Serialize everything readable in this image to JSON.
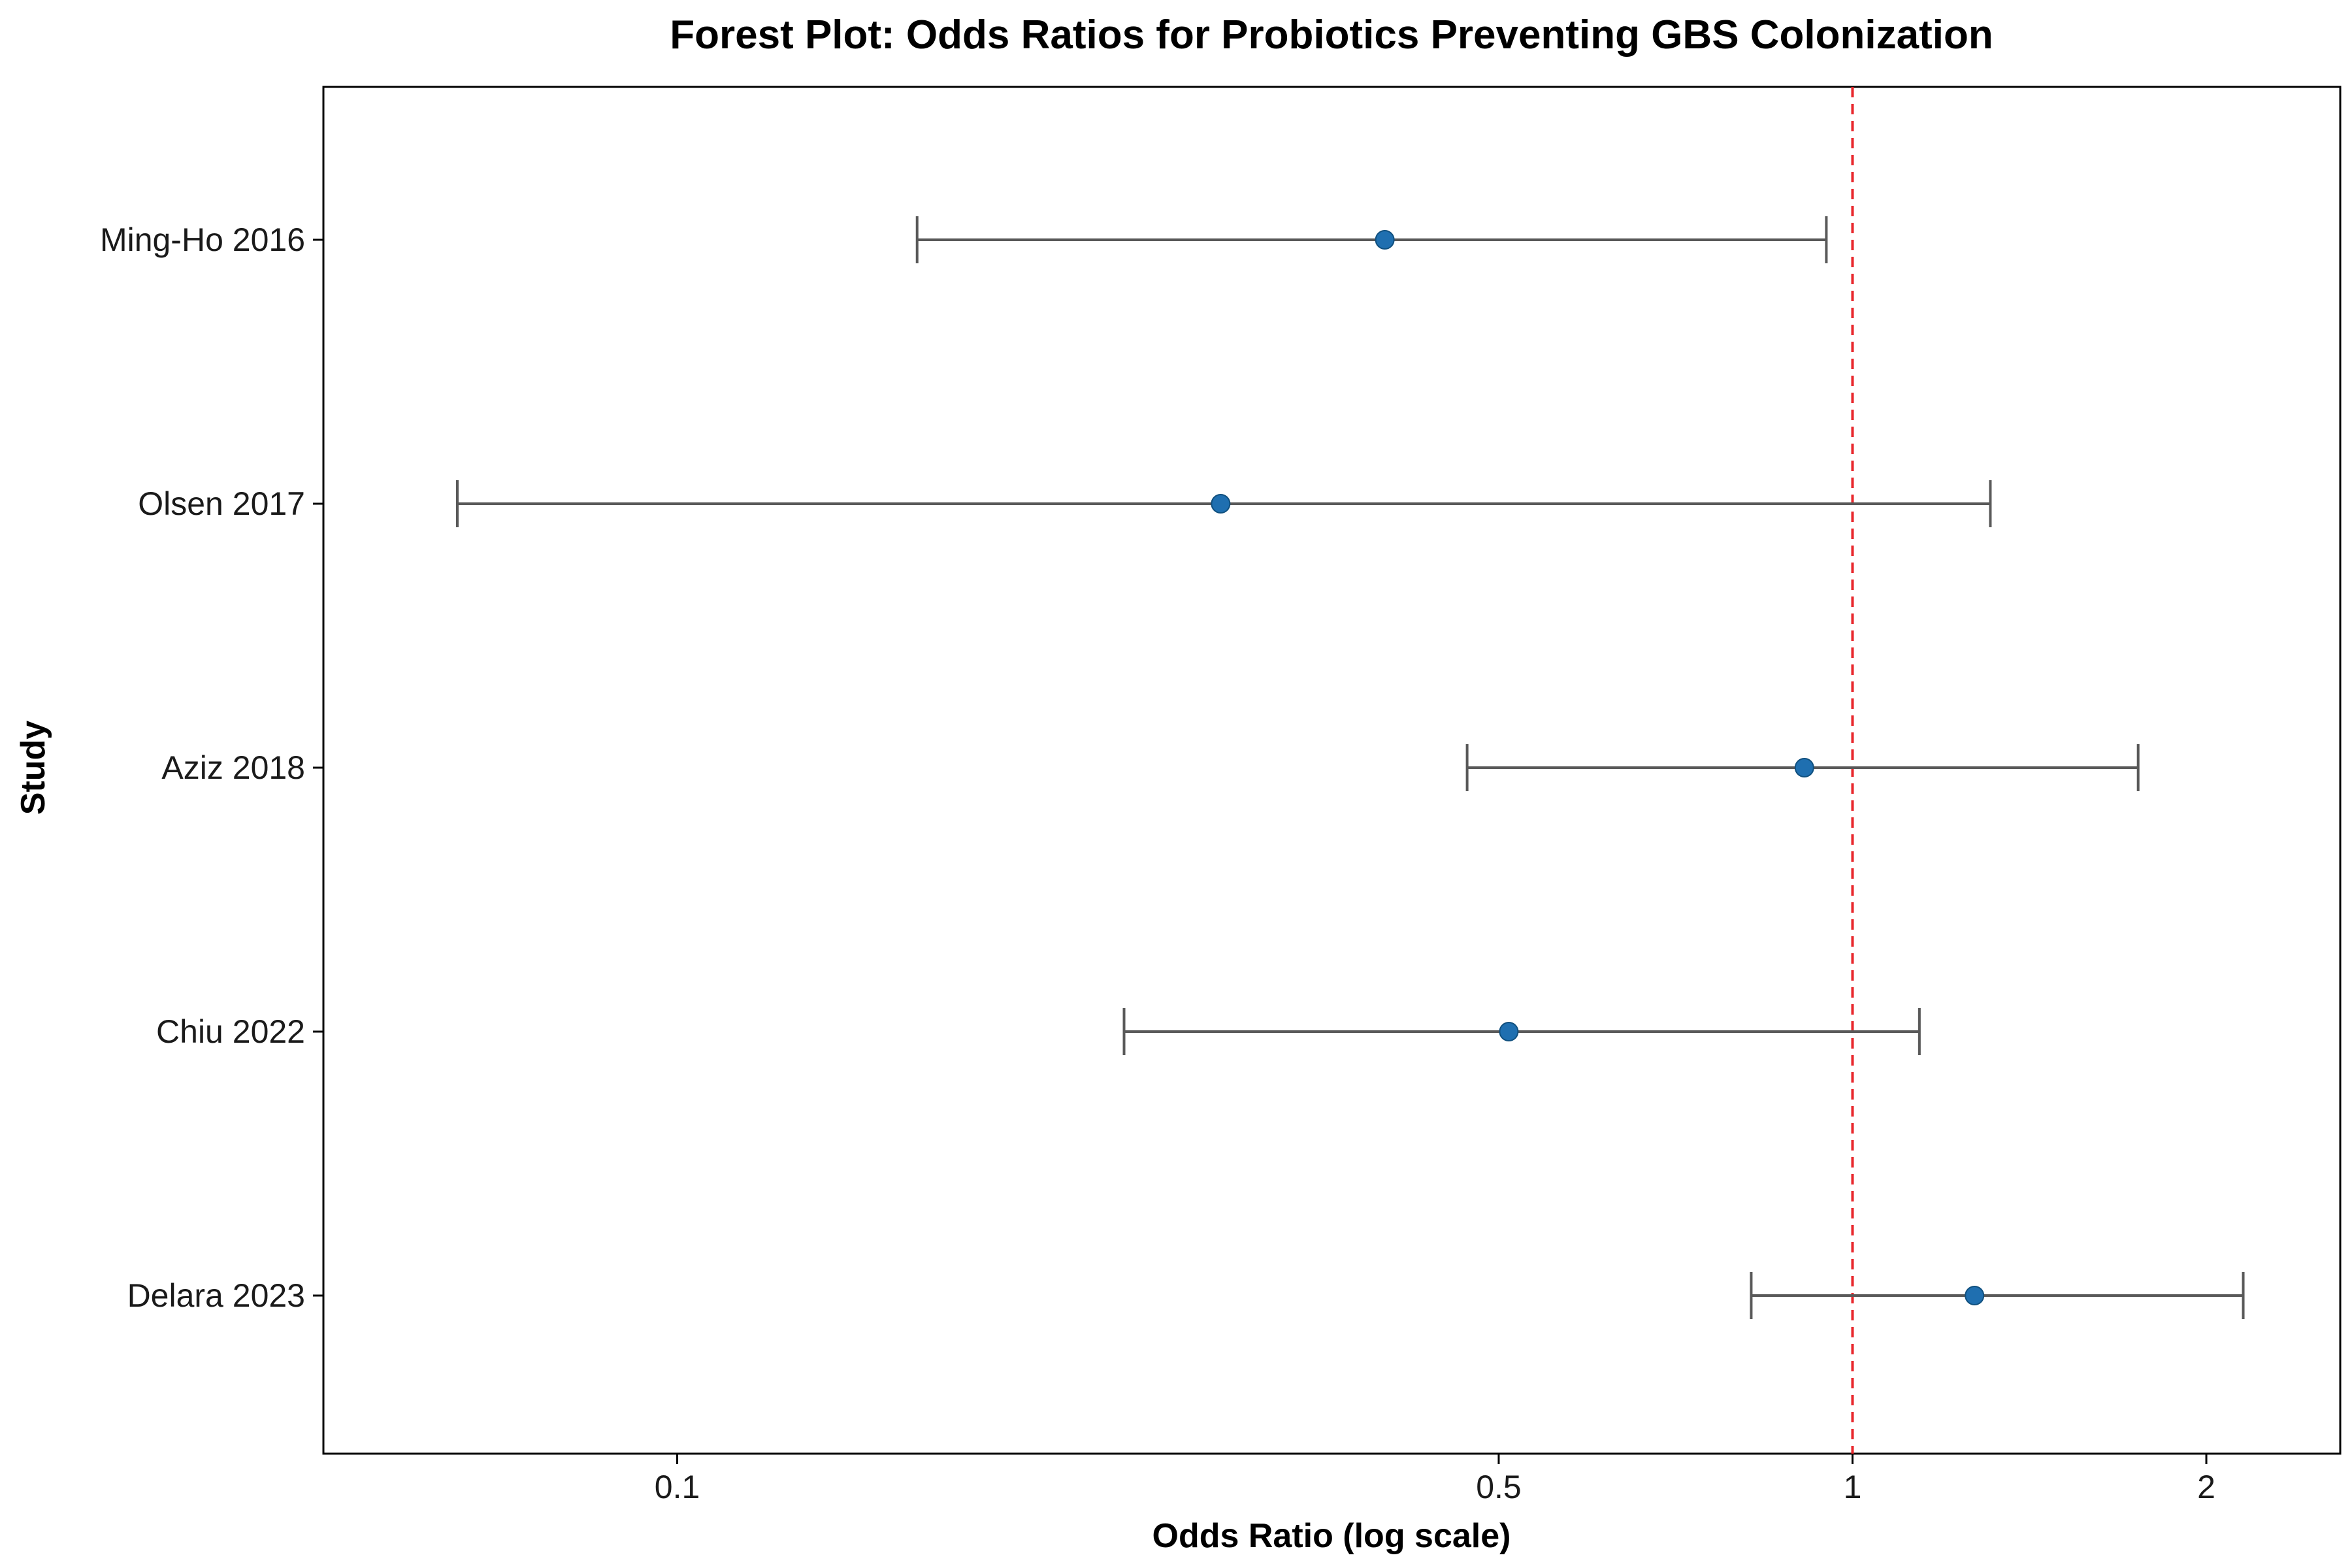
{
  "chart_data": {
    "type": "scatter",
    "title": "Forest Plot: Odds Ratios for Probiotics Preventing GBS Colonization",
    "xlabel": "Odds Ratio (log scale)",
    "ylabel": "Study",
    "x_scale": "log",
    "xlim": [
      0.05,
      2.6
    ],
    "x_ticks": [
      0.1,
      0.5,
      1,
      2
    ],
    "x_tick_labels": [
      "0.1",
      "0.5",
      "1",
      "2"
    ],
    "reference_line": {
      "x": 1,
      "style": "dashed",
      "color": "#e8262b"
    },
    "grid": false,
    "legend": "none",
    "colors": {
      "point": "#1f6fb0",
      "error_bar": "#595959",
      "axis": "#000000"
    },
    "studies": [
      {
        "name": "Ming-Ho 2016",
        "or": 0.4,
        "ci_low": 0.16,
        "ci_high": 0.95
      },
      {
        "name": "Olsen 2017",
        "or": 0.29,
        "ci_low": 0.065,
        "ci_high": 1.31
      },
      {
        "name": "Aziz 2018",
        "or": 0.91,
        "ci_low": 0.47,
        "ci_high": 1.75
      },
      {
        "name": "Chiu 2022",
        "or": 0.51,
        "ci_low": 0.24,
        "ci_high": 1.14
      },
      {
        "name": "Delara 2023",
        "or": 1.27,
        "ci_low": 0.82,
        "ci_high": 2.15
      }
    ]
  }
}
